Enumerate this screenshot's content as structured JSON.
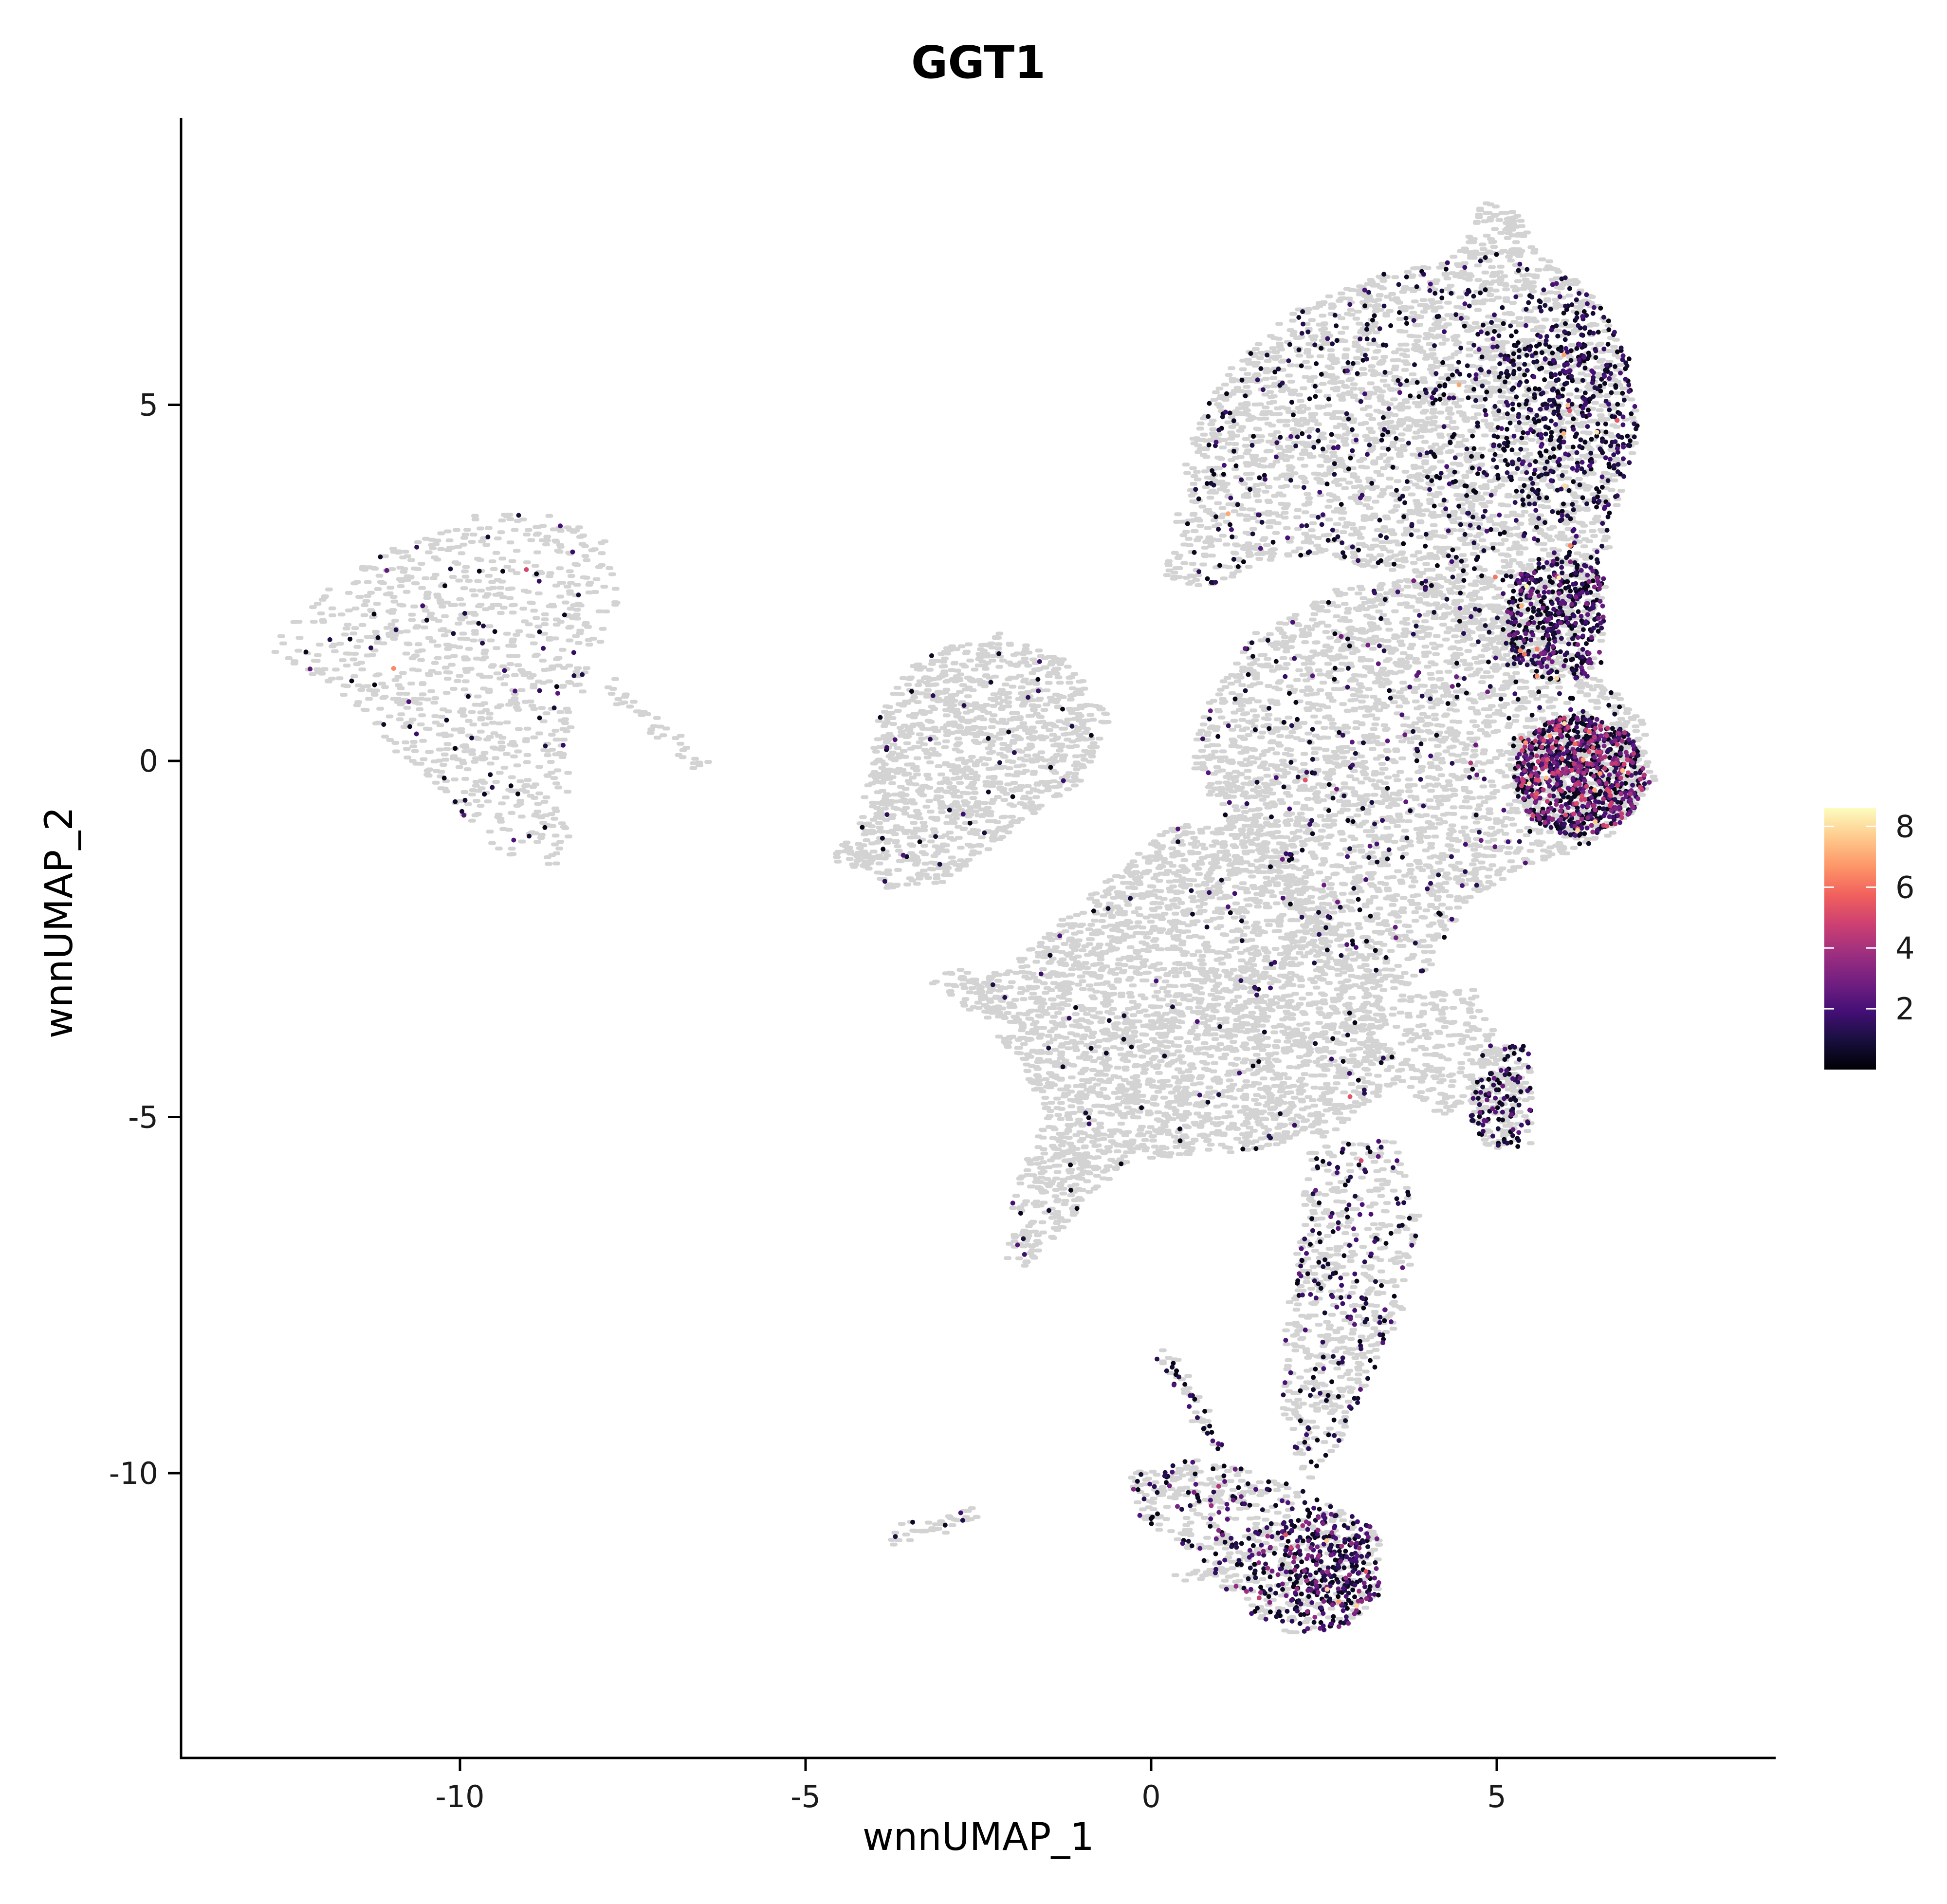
{
  "chart_data": {
    "type": "scatter",
    "title": "GGT1",
    "xlabel": "wnnUMAP_1",
    "ylabel": "wnnUMAP_2",
    "xlim": [
      -14,
      9
    ],
    "ylim": [
      -14,
      9
    ],
    "x_ticks": [
      -10,
      -5,
      0,
      5
    ],
    "y_ticks": [
      5,
      0,
      -5,
      -10
    ],
    "x_tick_labels": [
      "-10",
      "-5",
      "0",
      "5"
    ],
    "y_tick_labels": [
      "5",
      "0",
      "-5",
      "-10"
    ],
    "grid": false,
    "legend": {
      "position": "right",
      "type": "colorbar",
      "ticks": [
        2,
        4,
        6,
        8
      ],
      "tick_labels": [
        "2",
        "4",
        "6",
        "8"
      ],
      "range": [
        0,
        8.6
      ]
    },
    "colors": {
      "background_points": "#d3d3d3",
      "colormap": [
        "#000004",
        "#180f3d",
        "#440f76",
        "#721f81",
        "#9e2f7f",
        "#cd4071",
        "#f1605d",
        "#fd9668",
        "#feca8d",
        "#fcfdbf"
      ]
    },
    "clusters": [
      {
        "name": "left-island",
        "shape": "polygon",
        "polygon": [
          [
            -12.8,
            1.6
          ],
          [
            -11.8,
            2.5
          ],
          [
            -10.8,
            3.1
          ],
          [
            -9.8,
            3.5
          ],
          [
            -8.6,
            3.45
          ],
          [
            -7.8,
            3.05
          ],
          [
            -7.7,
            2.3
          ],
          [
            -8.1,
            1.3
          ],
          [
            -8.4,
            0.4
          ],
          [
            -8.45,
            -0.6
          ],
          [
            -8.3,
            -1.3
          ],
          [
            -8.7,
            -1.5
          ],
          [
            -9.6,
            -1.25
          ],
          [
            -10.1,
            -0.55
          ],
          [
            -10.8,
            0.0
          ],
          [
            -11.7,
            0.9
          ],
          [
            -12.3,
            1.3
          ]
        ],
        "n_bg": 900,
        "expr": {
          "n": 70,
          "weight": 1.2
        }
      },
      {
        "name": "left-tail",
        "shape": "line",
        "from": [
          -7.9,
          1.1
        ],
        "to": [
          -6.45,
          -0.1
        ],
        "spread": 0.06,
        "n_bg": 40
      },
      {
        "name": "mid-left-blob",
        "shape": "polygon",
        "polygon": [
          [
            -4.3,
            -1.3
          ],
          [
            -3.9,
            0.8
          ],
          [
            -3.3,
            1.5
          ],
          [
            -2.2,
            1.8
          ],
          [
            -1.2,
            1.4
          ],
          [
            -0.6,
            0.6
          ],
          [
            -1.0,
            -0.3
          ],
          [
            -1.8,
            -0.8
          ],
          [
            -2.4,
            -1.3
          ],
          [
            -3.0,
            -1.7
          ],
          [
            -3.8,
            -1.8
          ]
        ],
        "n_bg": 1200,
        "expr": {
          "n": 40,
          "weight": 1.2
        }
      },
      {
        "name": "mid-left-stub",
        "shape": "polygon",
        "polygon": [
          [
            -4.5,
            -1.1
          ],
          [
            -4.0,
            -1.3
          ],
          [
            -4.0,
            -1.6
          ],
          [
            -4.6,
            -1.4
          ]
        ],
        "n_bg": 30
      },
      {
        "name": "main-upper-body",
        "shape": "polygon",
        "polygon": [
          [
            0.2,
            2.5
          ],
          [
            0.5,
            4.3
          ],
          [
            1.0,
            5.4
          ],
          [
            2.0,
            6.3
          ],
          [
            3.2,
            6.8
          ],
          [
            4.6,
            7.15
          ],
          [
            5.8,
            7.1
          ],
          [
            6.5,
            6.4
          ],
          [
            6.95,
            5.6
          ],
          [
            7.05,
            4.6
          ],
          [
            6.7,
            3.4
          ],
          [
            6.5,
            2.2
          ],
          [
            6.0,
            1.6
          ],
          [
            5.2,
            1.3
          ],
          [
            4.3,
            1.9
          ],
          [
            3.5,
            2.6
          ],
          [
            2.5,
            2.9
          ],
          [
            1.6,
            2.8
          ],
          [
            0.8,
            2.4
          ]
        ],
        "n_bg": 2800,
        "expr": {
          "n": 1000,
          "weight": 1.0,
          "focus": [
            6.2,
            5.0
          ],
          "focus_sigma": 0.9,
          "focus_share": 0.45
        }
      },
      {
        "name": "main-top-tip",
        "shape": "polygon",
        "polygon": [
          [
            4.4,
            7.0
          ],
          [
            4.8,
            7.85
          ],
          [
            5.3,
            7.7
          ],
          [
            5.6,
            7.1
          ]
        ],
        "n_bg": 90
      },
      {
        "name": "center-right-mass",
        "shape": "polygon",
        "polygon": [
          [
            0.7,
            0.6
          ],
          [
            1.5,
            1.8
          ],
          [
            2.6,
            2.4
          ],
          [
            4.2,
            2.6
          ],
          [
            5.2,
            2.1
          ],
          [
            6.1,
            1.4
          ],
          [
            7.1,
            0.7
          ],
          [
            7.3,
            -0.3
          ],
          [
            6.8,
            -1.0
          ],
          [
            6.1,
            -1.3
          ],
          [
            5.3,
            -1.5
          ],
          [
            4.5,
            -2.1
          ],
          [
            4.0,
            -3.0
          ],
          [
            3.4,
            -3.3
          ],
          [
            2.6,
            -2.8
          ],
          [
            1.8,
            -1.8
          ],
          [
            1.1,
            -0.8
          ],
          [
            0.6,
            -0.2
          ]
        ],
        "n_bg": 2600,
        "expr": {
          "n": 260,
          "weight": 1.4
        }
      },
      {
        "name": "right-hotspot",
        "shape": "ellipse",
        "center": [
          6.2,
          -0.2
        ],
        "radius": [
          0.95,
          0.85
        ],
        "n_bg": 200,
        "expr": {
          "n": 800,
          "weight": 2.6
        }
      },
      {
        "name": "right-arm",
        "shape": "polygon",
        "polygon": [
          [
            5.2,
            2.6
          ],
          [
            6.0,
            2.9
          ],
          [
            6.6,
            2.6
          ],
          [
            6.5,
            1.2
          ],
          [
            5.6,
            1.1
          ],
          [
            5.1,
            1.6
          ]
        ],
        "n_bg": 100,
        "expr": {
          "n": 380,
          "weight": 1.6
        }
      },
      {
        "name": "diagonal-band",
        "shape": "polygon",
        "polygon": [
          [
            -3.2,
            -3.1
          ],
          [
            -2.2,
            -3.0
          ],
          [
            -0.9,
            -1.9
          ],
          [
            0.3,
            -0.9
          ],
          [
            1.6,
            -0.7
          ],
          [
            2.4,
            -1.9
          ],
          [
            3.3,
            -3.3
          ],
          [
            3.6,
            -4.5
          ],
          [
            2.5,
            -5.3
          ],
          [
            1.2,
            -5.5
          ],
          [
            -0.3,
            -5.6
          ],
          [
            -1.3,
            -6.6
          ],
          [
            -1.8,
            -7.1
          ],
          [
            -2.1,
            -7.0
          ],
          [
            -2.0,
            -6.0
          ],
          [
            -1.5,
            -5.0
          ],
          [
            -1.9,
            -4.2
          ],
          [
            -2.5,
            -3.6
          ]
        ],
        "n_bg": 3200,
        "expr": {
          "n": 90,
          "weight": 1.1
        }
      },
      {
        "name": "mid-connector",
        "shape": "polygon",
        "polygon": [
          [
            3.5,
            -3.3
          ],
          [
            4.7,
            -3.2
          ],
          [
            5.3,
            -4.5
          ],
          [
            4.2,
            -5.0
          ],
          [
            3.4,
            -4.4
          ]
        ],
        "n_bg": 220
      },
      {
        "name": "small-right-cluster",
        "shape": "polygon",
        "polygon": [
          [
            4.8,
            -4.0
          ],
          [
            5.5,
            -4.0
          ],
          [
            5.5,
            -5.4
          ],
          [
            4.9,
            -5.5
          ],
          [
            4.6,
            -5.0
          ]
        ],
        "n_bg": 150,
        "expr": {
          "n": 110,
          "weight": 1.3
        }
      },
      {
        "name": "lower-stalk",
        "shape": "polygon",
        "polygon": [
          [
            2.2,
            -5.4
          ],
          [
            3.5,
            -5.3
          ],
          [
            3.9,
            -6.4
          ],
          [
            3.6,
            -7.9
          ],
          [
            3.1,
            -8.8
          ],
          [
            2.7,
            -9.6
          ],
          [
            2.3,
            -10.1
          ],
          [
            1.9,
            -9.6
          ],
          [
            1.9,
            -8.6
          ],
          [
            2.0,
            -7.4
          ],
          [
            2.2,
            -6.4
          ]
        ],
        "n_bg": 500,
        "expr": {
          "n": 180,
          "weight": 1.2
        }
      },
      {
        "name": "bottom-cluster",
        "shape": "polygon",
        "polygon": [
          [
            -0.3,
            -10.0
          ],
          [
            0.6,
            -9.8
          ],
          [
            1.7,
            -10.0
          ],
          [
            2.7,
            -10.5
          ],
          [
            3.3,
            -10.8
          ],
          [
            3.3,
            -11.7
          ],
          [
            2.8,
            -12.2
          ],
          [
            2.0,
            -12.25
          ],
          [
            1.3,
            -11.9
          ],
          [
            0.6,
            -11.1
          ],
          [
            -0.2,
            -10.6
          ]
        ],
        "n_bg": 500,
        "expr": {
          "n": 520,
          "weight": 1.9,
          "focus": [
            2.6,
            -11.4
          ],
          "focus_sigma": 0.55,
          "focus_share": 0.55
        }
      },
      {
        "name": "bottom-streak",
        "shape": "line",
        "from": [
          0.2,
          -8.3
        ],
        "to": [
          1.0,
          -9.7
        ],
        "spread": 0.06,
        "n_bg": 30,
        "expr": {
          "n": 25,
          "weight": 1.0
        }
      },
      {
        "name": "bottom-left-stub",
        "shape": "line",
        "from": [
          -3.75,
          -10.95
        ],
        "to": [
          -2.5,
          -10.55
        ],
        "spread": 0.07,
        "n_bg": 40,
        "expr": {
          "n": 5,
          "weight": 1.0
        }
      },
      {
        "name": "bottom-left-link",
        "shape": "line",
        "from": [
          0.4,
          -11.45
        ],
        "to": [
          1.1,
          -11.35
        ],
        "spread": 0.05,
        "n_bg": 20
      },
      {
        "name": "upper-left-link",
        "shape": "line",
        "from": [
          -3.1,
          -2.9
        ],
        "to": [
          -2.2,
          -3.2
        ],
        "spread": 0.06,
        "n_bg": 20
      }
    ]
  }
}
